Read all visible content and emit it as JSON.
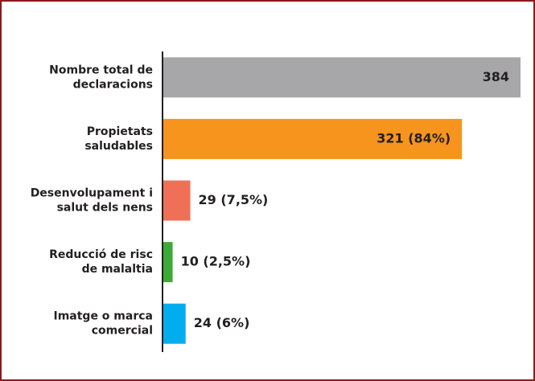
{
  "chart_data": {
    "type": "hbar",
    "categories": [
      "Nombre total de\ndeclaracions",
      "Propietats\nsaludables",
      "Desenvolupament i\nsalut dels nens",
      "Reducció de risc\nde malaltia",
      "Imatge o marca\ncomercial"
    ],
    "values": [
      384,
      321,
      29,
      10,
      24
    ],
    "value_labels": [
      "384",
      "321 (84%)",
      "29 (7,5%)",
      "10 (2,5%)",
      "24 (6%)"
    ],
    "colors": [
      "#a7a7a9",
      "#f7941d",
      "#f07057",
      "#3aaa35",
      "#00aeef"
    ],
    "xlim": [
      0,
      384
    ]
  }
}
